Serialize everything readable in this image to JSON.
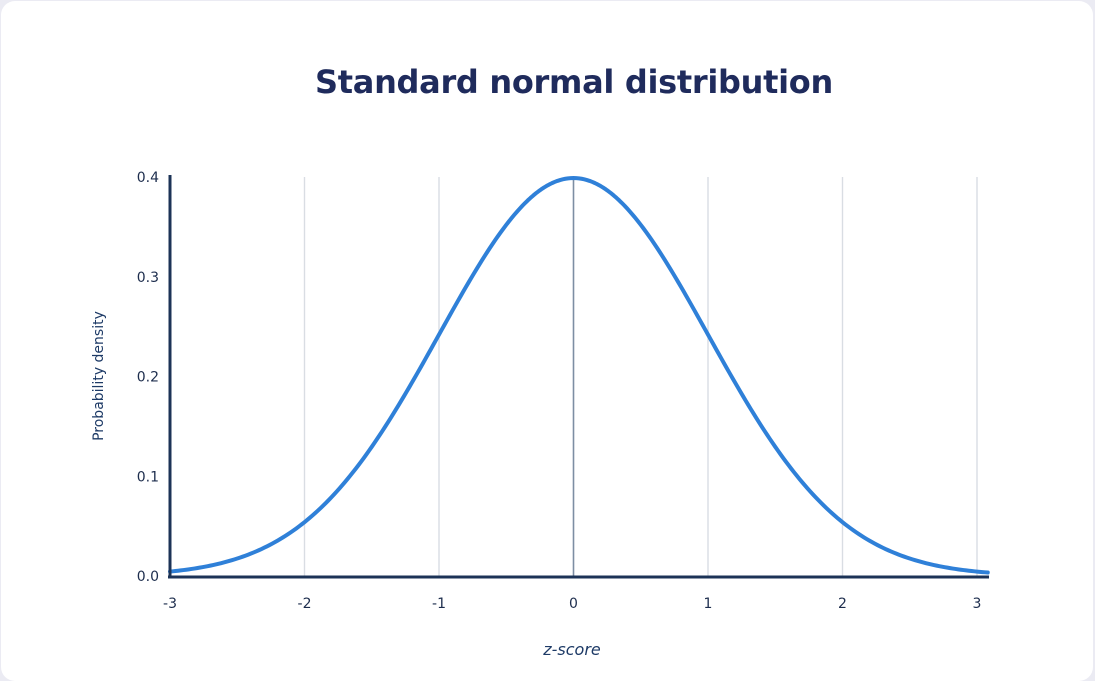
{
  "chart_data": {
    "type": "line",
    "title": "Standard normal distribution",
    "xlabel": "z-score",
    "ylabel": "Probability density",
    "xlim": [
      -3,
      3.09
    ],
    "ylim": [
      0,
      0.4
    ],
    "x_ticks": [
      "-3",
      "-2",
      "-1",
      "0",
      "1",
      "2",
      "3"
    ],
    "y_ticks": [
      "0.0",
      "0.1",
      "0.2",
      "0.3",
      "0.4"
    ],
    "grid": "vertical lines at integer z-scores; z=0 line darker",
    "legend": null,
    "series": [
      {
        "name": "Standard normal PDF",
        "color": "#2f80d8",
        "x": [
          -3,
          -2.5,
          -2,
          -1.5,
          -1,
          -0.5,
          0,
          0.5,
          1,
          1.5,
          2,
          2.5,
          3
        ],
        "y": [
          0.0044,
          0.0175,
          0.054,
          0.1295,
          0.242,
          0.3521,
          0.3989,
          0.3521,
          0.242,
          0.1295,
          0.054,
          0.0175,
          0.0044
        ]
      }
    ]
  },
  "colors": {
    "title": "#1f2b5c",
    "axis": "#1c3357",
    "curve": "#2f80d8",
    "grid": "#d9dde3",
    "center_line": "#7d8ea3",
    "card_bg": "#ffffff",
    "page_bg": "#ebebf3"
  }
}
